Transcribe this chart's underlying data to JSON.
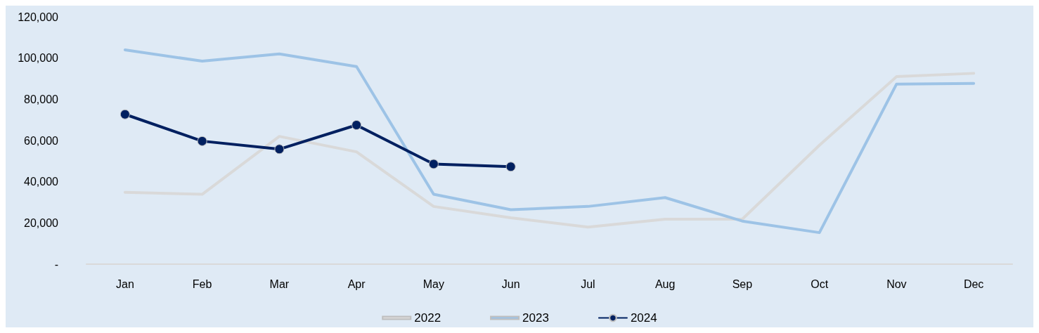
{
  "chart_data": {
    "type": "line",
    "categories": [
      "Jan",
      "Feb",
      "Mar",
      "Apr",
      "May",
      "Jun",
      "Jul",
      "Aug",
      "Sep",
      "Oct",
      "Nov",
      "Dec"
    ],
    "series": [
      {
        "name": "2022",
        "color": "#d9d9d9",
        "values": [
          34900,
          33900,
          62000,
          54500,
          28000,
          22500,
          18000,
          21800,
          21800,
          57700,
          91000,
          92600
        ]
      },
      {
        "name": "2023",
        "color": "#9dc3e6",
        "values": [
          104000,
          98500,
          102000,
          95900,
          33900,
          26400,
          28000,
          32300,
          20900,
          15300,
          87400,
          87700
        ]
      },
      {
        "name": "2024",
        "color": "#002060",
        "marker": "circle",
        "values": [
          72700,
          59700,
          55800,
          67500,
          48600,
          47300,
          null,
          null,
          null,
          null,
          null,
          null
        ]
      }
    ],
    "ylim": [
      0,
      120000
    ],
    "yticks": [
      {
        "value": 0,
        "label": "-"
      },
      {
        "value": 20000,
        "label": "20,000"
      },
      {
        "value": 40000,
        "label": "40,000"
      },
      {
        "value": 60000,
        "label": "60,000"
      },
      {
        "value": 80000,
        "label": "80,000"
      },
      {
        "value": 100000,
        "label": "100,000"
      },
      {
        "value": 120000,
        "label": "120,000"
      }
    ],
    "grid": false,
    "legend": "bottom",
    "marker": "none",
    "line_style": "solid"
  }
}
